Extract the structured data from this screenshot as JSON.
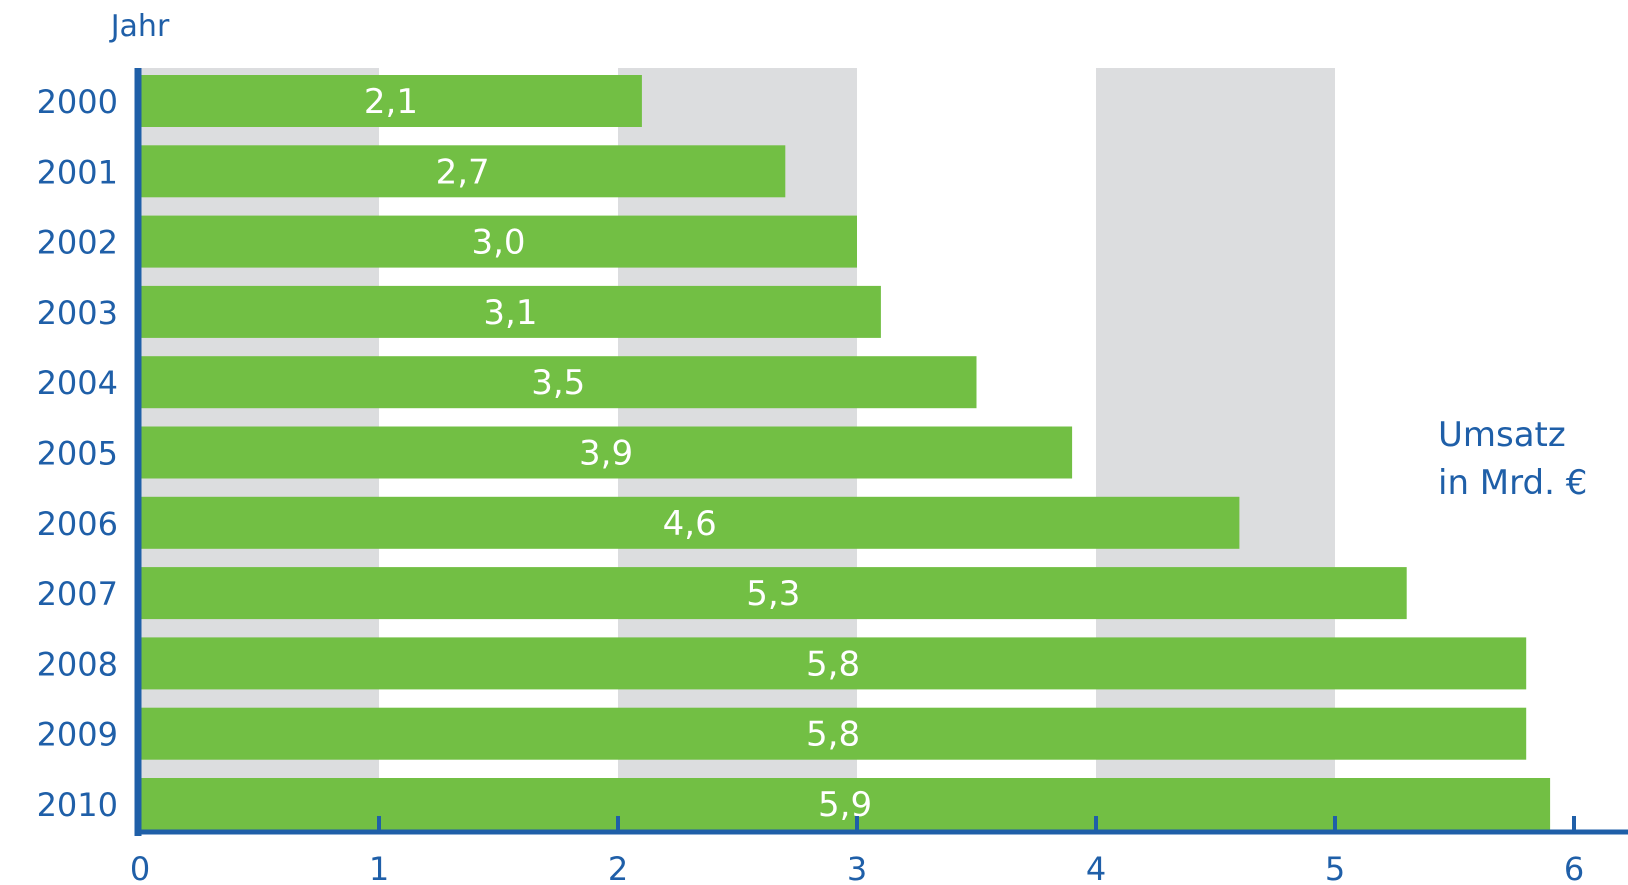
{
  "chart_data": {
    "type": "bar",
    "orientation": "horizontal",
    "categories": [
      "2000",
      "2001",
      "2002",
      "2003",
      "2004",
      "2005",
      "2006",
      "2007",
      "2008",
      "2009",
      "2010"
    ],
    "values": [
      2.1,
      2.7,
      3.0,
      3.1,
      3.5,
      3.9,
      4.6,
      5.3,
      5.8,
      5.8,
      5.9
    ],
    "value_labels": [
      "2,1",
      "2,7",
      "3,0",
      "3,1",
      "3,5",
      "3,9",
      "4,6",
      "5,3",
      "5,8",
      "5,8",
      "5,9"
    ],
    "xlim": [
      0,
      6
    ],
    "xticks": [
      "0",
      "1",
      "2",
      "3",
      "4",
      "5",
      "6"
    ],
    "xlabel": "Umsatz in Mrd. €",
    "xlabel_lines": [
      "Umsatz",
      "in Mrd. €"
    ],
    "ylabel": "Jahr",
    "grid": "alternating shaded bands",
    "colors": {
      "bar": "#72bf44",
      "axis": "#1f5fa8",
      "band": "#dcdddf",
      "text": "#1f5fa8",
      "value_text": "#ffffff"
    }
  }
}
